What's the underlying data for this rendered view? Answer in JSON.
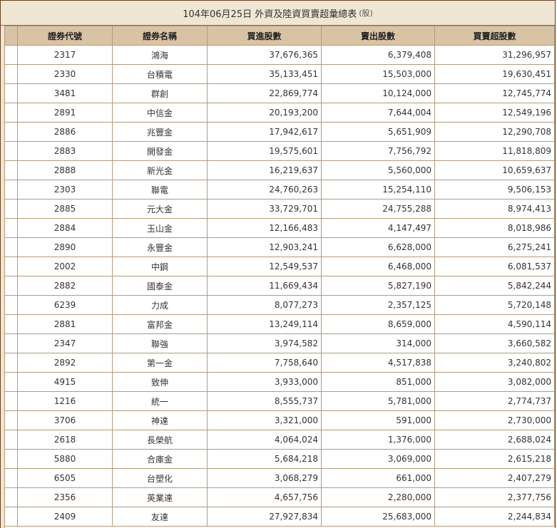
{
  "title": {
    "text": "104年06月25日 外資及陸資買賣超彙總表",
    "unit": "(股)"
  },
  "columns": [
    "證券代號",
    "證券名稱",
    "買進股數",
    "賣出股數",
    "買賣超股數"
  ],
  "rows": [
    [
      "2317",
      "鴻海",
      "37,676,365",
      "6,379,408",
      "31,296,957"
    ],
    [
      "2330",
      "台積電",
      "35,133,451",
      "15,503,000",
      "19,630,451"
    ],
    [
      "3481",
      "群創",
      "22,869,774",
      "10,124,000",
      "12,745,774"
    ],
    [
      "2891",
      "中信金",
      "20,193,200",
      "7,644,004",
      "12,549,196"
    ],
    [
      "2886",
      "兆豐金",
      "17,942,617",
      "5,651,909",
      "12,290,708"
    ],
    [
      "2883",
      "開發金",
      "19,575,601",
      "7,756,792",
      "11,818,809"
    ],
    [
      "2888",
      "新光金",
      "16,219,637",
      "5,560,000",
      "10,659,637"
    ],
    [
      "2303",
      "聯電",
      "24,760,263",
      "15,254,110",
      "9,506,153"
    ],
    [
      "2885",
      "元大金",
      "33,729,701",
      "24,755,288",
      "8,974,413"
    ],
    [
      "2884",
      "玉山金",
      "12,166,483",
      "4,147,497",
      "8,018,986"
    ],
    [
      "2890",
      "永豐金",
      "12,903,241",
      "6,628,000",
      "6,275,241"
    ],
    [
      "2002",
      "中鋼",
      "12,549,537",
      "6,468,000",
      "6,081,537"
    ],
    [
      "2882",
      "國泰金",
      "11,669,434",
      "5,827,190",
      "5,842,244"
    ],
    [
      "6239",
      "力成",
      "8,077,273",
      "2,357,125",
      "5,720,148"
    ],
    [
      "2881",
      "富邦金",
      "13,249,114",
      "8,659,000",
      "4,590,114"
    ],
    [
      "2347",
      "聯強",
      "3,974,582",
      "314,000",
      "3,660,582"
    ],
    [
      "2892",
      "第一金",
      "7,758,640",
      "4,517,838",
      "3,240,802"
    ],
    [
      "4915",
      "致伸",
      "3,933,000",
      "851,000",
      "3,082,000"
    ],
    [
      "1216",
      "統一",
      "8,555,737",
      "5,781,000",
      "2,774,737"
    ],
    [
      "3706",
      "神達",
      "3,321,000",
      "591,000",
      "2,730,000"
    ],
    [
      "2618",
      "長榮航",
      "4,064,024",
      "1,376,000",
      "2,688,024"
    ],
    [
      "5880",
      "合庫金",
      "5,684,218",
      "3,069,000",
      "2,615,218"
    ],
    [
      "6505",
      "台塑化",
      "3,068,279",
      "661,000",
      "2,407,279"
    ],
    [
      "2356",
      "英業達",
      "4,657,756",
      "2,280,000",
      "2,377,756"
    ],
    [
      "2409",
      "友達",
      "27,927,834",
      "25,683,000",
      "2,244,834"
    ]
  ]
}
